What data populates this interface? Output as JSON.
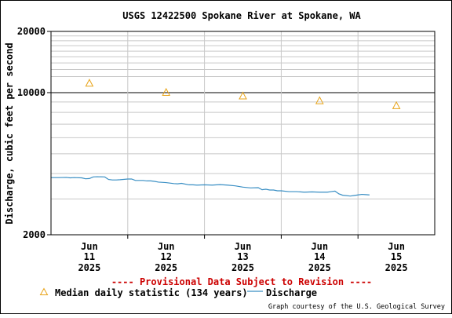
{
  "chart_data": {
    "type": "line",
    "title": "USGS 12422500 Spokane River at Spokane, WA",
    "ylabel": "Discharge, cubic feet per second",
    "xlabel": "",
    "y_scale": "log",
    "ylim": [
      2000,
      20000
    ],
    "y_tick_labels": [
      "20000",
      "10000",
      "2000"
    ],
    "y_tick_values": [
      20000,
      10000,
      2000
    ],
    "x_range_days": [
      0,
      5
    ],
    "x_ticks": [
      {
        "day": 0.5,
        "month": "Jun",
        "date": "11",
        "year": "2025"
      },
      {
        "day": 1.5,
        "month": "Jun",
        "date": "12",
        "year": "2025"
      },
      {
        "day": 2.5,
        "month": "Jun",
        "date": "13",
        "year": "2025"
      },
      {
        "day": 3.5,
        "month": "Jun",
        "date": "14",
        "year": "2025"
      },
      {
        "day": 4.5,
        "month": "Jun",
        "date": "15",
        "year": "2025"
      }
    ],
    "series": [
      {
        "name": "Median daily statistic (134 years)",
        "style": "triangle-markers",
        "color": "#e8a317",
        "x": [
          0.5,
          1.5,
          2.5,
          3.5,
          4.5
        ],
        "y": [
          11100,
          10000,
          9600,
          9100,
          8600
        ]
      },
      {
        "name": "Discharge",
        "style": "line",
        "color": "#3a8fc4",
        "x": [
          0.0,
          0.1,
          0.2,
          0.25,
          0.3,
          0.4,
          0.45,
          0.5,
          0.55,
          0.6,
          0.7,
          0.75,
          0.8,
          0.85,
          0.9,
          1.0,
          1.05,
          1.1,
          1.2,
          1.25,
          1.3,
          1.35,
          1.4,
          1.5,
          1.6,
          1.65,
          1.7,
          1.8,
          1.85,
          1.9,
          2.0,
          2.1,
          2.2,
          2.3,
          2.4,
          2.5,
          2.6,
          2.7,
          2.75,
          2.8,
          2.85,
          2.9,
          2.95,
          3.0,
          3.1,
          3.2,
          3.3,
          3.4,
          3.5,
          3.6,
          3.65,
          3.7,
          3.75,
          3.8,
          3.9,
          3.95,
          4.0,
          4.05,
          4.1,
          4.15
        ],
        "y": [
          3820,
          3820,
          3830,
          3810,
          3820,
          3810,
          3770,
          3780,
          3850,
          3860,
          3850,
          3740,
          3720,
          3720,
          3730,
          3760,
          3760,
          3700,
          3700,
          3680,
          3680,
          3660,
          3630,
          3610,
          3570,
          3560,
          3580,
          3520,
          3520,
          3510,
          3520,
          3510,
          3530,
          3510,
          3480,
          3430,
          3400,
          3410,
          3330,
          3350,
          3320,
          3320,
          3290,
          3290,
          3260,
          3260,
          3240,
          3250,
          3240,
          3240,
          3260,
          3280,
          3180,
          3130,
          3100,
          3120,
          3140,
          3160,
          3150,
          3140
        ]
      }
    ],
    "grid": true,
    "legend_position": "bottom-left"
  },
  "notice": "---- Provisional Data Subject to Revision ----",
  "legend": {
    "median_label": "Median daily statistic (134 years)",
    "discharge_label": "Discharge"
  },
  "credit": "Graph courtesy of the U.S. Geological Survey",
  "colors": {
    "median": "#e8a317",
    "discharge": "#3a8fc4",
    "notice": "#cc0000",
    "grid": "#c8c8c8",
    "axis": "#000000"
  }
}
